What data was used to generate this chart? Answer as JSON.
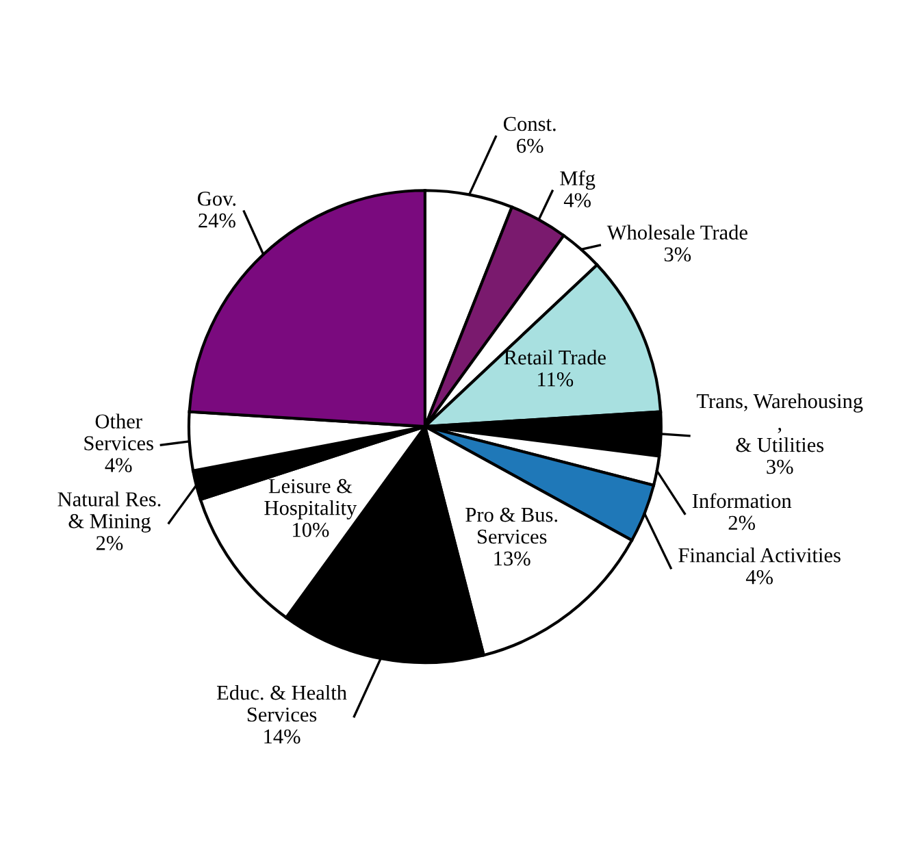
{
  "chart_data": {
    "type": "pie",
    "categories": [
      "Const.",
      "Mfg",
      "Wholesale Trade",
      "Retail Trade",
      "Trans, Warehousing\n,\n& Utilities",
      "Information",
      "Financial Activities",
      "Pro & Bus.\nServices",
      "Educ. & Health\nServices",
      "Leisure &\nHospitality",
      "Natural Res.\n& Mining",
      "Other\nServices",
      "Gov."
    ],
    "values": [
      6,
      4,
      3,
      11,
      3,
      2,
      4,
      13,
      14,
      10,
      2,
      4,
      24
    ],
    "value_labels": [
      "6%",
      "4%",
      "3%",
      "11%",
      "3%",
      "2%",
      "4%",
      "13%",
      "14%",
      "10%",
      "2%",
      "4%",
      "24%"
    ],
    "colors": [
      "#ffffff",
      "#7a1a6e",
      "#ffffff",
      "#a8e0e0",
      "#000000",
      "#ffffff",
      "#1f78b8",
      "#ffffff",
      "#000000",
      "#ffffff",
      "#000000",
      "#ffffff",
      "#7a0a7e"
    ]
  }
}
